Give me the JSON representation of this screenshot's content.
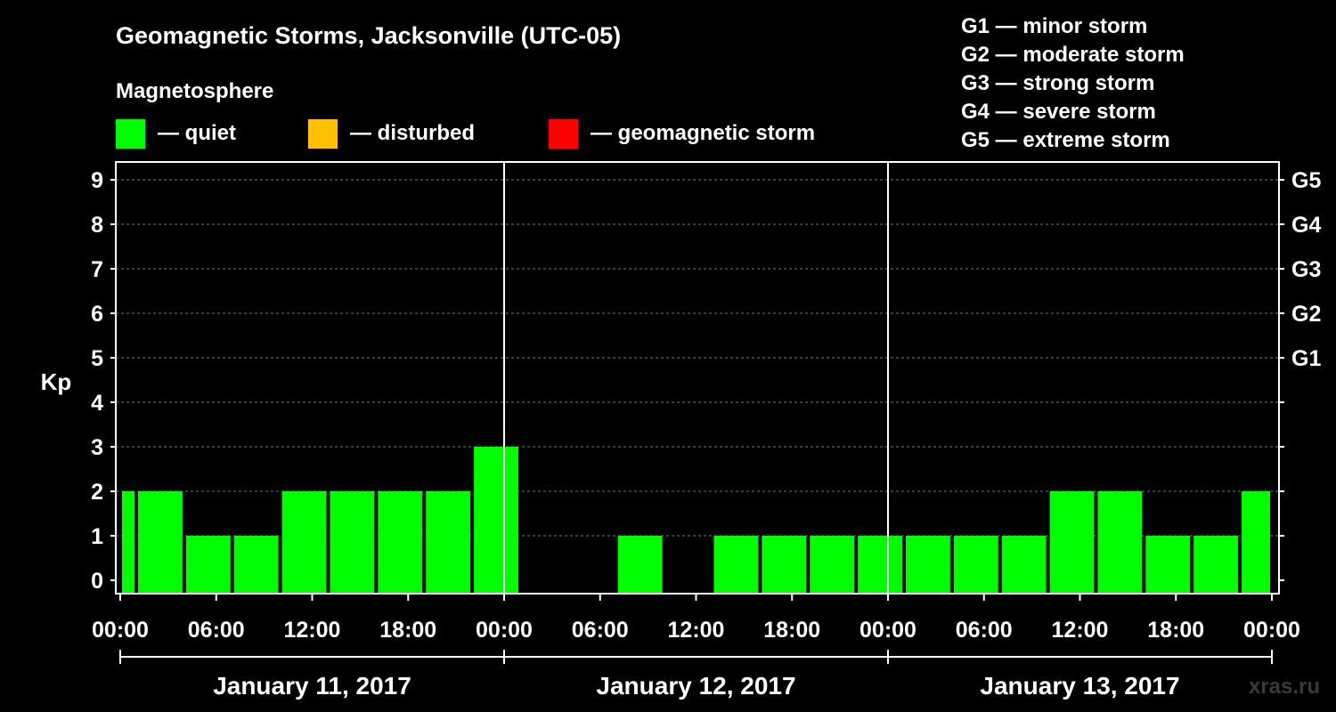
{
  "chart_data": {
    "type": "bar",
    "title": "Geomagnetic Storms, Jacksonville (UTC-05)",
    "ylabel": "Kp",
    "ylim": [
      0,
      9
    ],
    "yticks": [
      "0",
      "1",
      "2",
      "3",
      "4",
      "5",
      "6",
      "7",
      "8",
      "9"
    ],
    "right_axis_labels": [
      {
        "kp": 5,
        "label": "G1"
      },
      {
        "kp": 6,
        "label": "G2"
      },
      {
        "kp": 7,
        "label": "G3"
      },
      {
        "kp": 8,
        "label": "G4"
      },
      {
        "kp": 9,
        "label": "G5"
      }
    ],
    "x_tick_labels": [
      "00:00",
      "06:00",
      "12:00",
      "18:00",
      "00:00",
      "06:00",
      "12:00",
      "18:00",
      "00:00",
      "06:00",
      "12:00",
      "18:00",
      "00:00"
    ],
    "x_range_hours": [
      0,
      72
    ],
    "grid": true,
    "day_labels": [
      "January 11, 2017",
      "January 12, 2017",
      "January 13, 2017"
    ],
    "magnetosphere_legend": {
      "heading": "Magnetosphere",
      "items": [
        {
          "label": "— quiet",
          "color": "#00ff00"
        },
        {
          "label": "— disturbed",
          "color": "#ffc000"
        },
        {
          "label": "— geomagnetic storm",
          "color": "#ff0000"
        }
      ]
    },
    "storm_scale_legend": [
      "G1 — minor storm",
      "G2 — moderate storm",
      "G3 — strong storm",
      "G4 — severe storm",
      "G5 — extreme storm"
    ],
    "series": [
      {
        "color": "#00ff00",
        "bars": [
          {
            "start": 0,
            "end": 1,
            "kp": 2
          },
          {
            "start": 1,
            "end": 4,
            "kp": 2
          },
          {
            "start": 4,
            "end": 7,
            "kp": 1
          },
          {
            "start": 7,
            "end": 10,
            "kp": 1
          },
          {
            "start": 10,
            "end": 13,
            "kp": 2
          },
          {
            "start": 13,
            "end": 16,
            "kp": 2
          },
          {
            "start": 16,
            "end": 19,
            "kp": 2
          },
          {
            "start": 19,
            "end": 22,
            "kp": 2
          },
          {
            "start": 22,
            "end": 25,
            "kp": 3
          },
          {
            "start": 25,
            "end": 28,
            "kp": 0
          },
          {
            "start": 28,
            "end": 31,
            "kp": 0
          },
          {
            "start": 31,
            "end": 34,
            "kp": 1
          },
          {
            "start": 34,
            "end": 37,
            "kp": 0
          },
          {
            "start": 37,
            "end": 40,
            "kp": 1
          },
          {
            "start": 40,
            "end": 43,
            "kp": 1
          },
          {
            "start": 43,
            "end": 46,
            "kp": 1
          },
          {
            "start": 46,
            "end": 49,
            "kp": 1
          },
          {
            "start": 49,
            "end": 52,
            "kp": 1
          },
          {
            "start": 52,
            "end": 55,
            "kp": 1
          },
          {
            "start": 55,
            "end": 58,
            "kp": 1
          },
          {
            "start": 58,
            "end": 61,
            "kp": 2
          },
          {
            "start": 61,
            "end": 64,
            "kp": 2
          },
          {
            "start": 64,
            "end": 67,
            "kp": 1
          },
          {
            "start": 67,
            "end": 70,
            "kp": 1
          },
          {
            "start": 70,
            "end": 72,
            "kp": 2
          }
        ]
      }
    ],
    "watermark": "xras.ru"
  }
}
